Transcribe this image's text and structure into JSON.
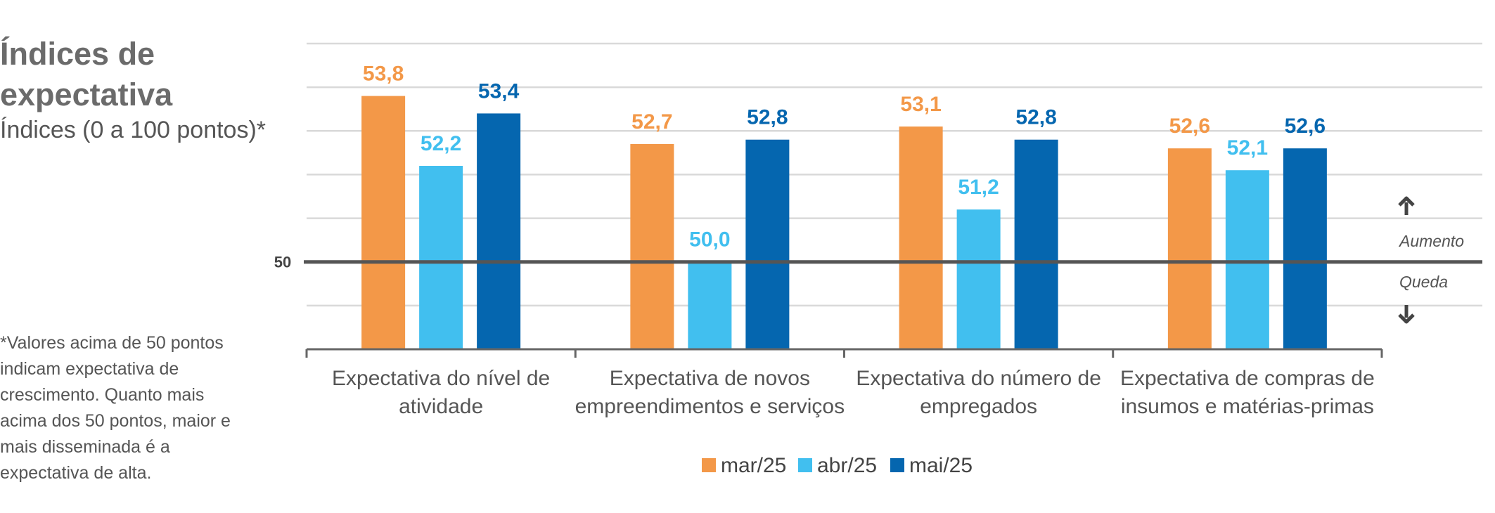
{
  "header": {
    "title": "Índices de expectativa",
    "subtitle": "Índices (0 a 100 pontos)*"
  },
  "footnote": "*Valores acima de 50 pontos indicam expectativa de crescimento. Quanto mais acima dos 50 pontos, maior e mais disseminada é a expectativa de alta.",
  "side_labels": {
    "up": "Aumento",
    "down": "Queda",
    "reference": "50"
  },
  "colors": {
    "mar": "#F39848",
    "abr": "#41BFEF",
    "mai": "#0566AF",
    "grid": "#d9d9d9",
    "ref": "#555555"
  },
  "chart_data": {
    "type": "bar",
    "categories": [
      [
        "Expectativa do nível de",
        "atividade"
      ],
      [
        "Expectativa de novos",
        "empreendimentos e serviços"
      ],
      [
        "Expectativa do número de",
        "empregados"
      ],
      [
        "Expectativa de compras de",
        "insumos e matérias-primas"
      ]
    ],
    "series": [
      {
        "name": "mar/25",
        "values": [
          53.8,
          52.7,
          53.1,
          52.6
        ],
        "labels": [
          "53,8",
          "52,7",
          "53,1",
          "52,6"
        ]
      },
      {
        "name": "abr/25",
        "values": [
          52.2,
          50.0,
          51.2,
          52.1
        ],
        "labels": [
          "52,2",
          "50,0",
          "51,2",
          "52,1"
        ]
      },
      {
        "name": "mai/25",
        "values": [
          53.4,
          52.8,
          52.8,
          52.6
        ],
        "labels": [
          "53,4",
          "52,8",
          "52,8",
          "52,6"
        ]
      }
    ],
    "ylim": [
      48,
      55
    ],
    "reference_line": 50,
    "grid": true,
    "legend_position": "bottom"
  }
}
